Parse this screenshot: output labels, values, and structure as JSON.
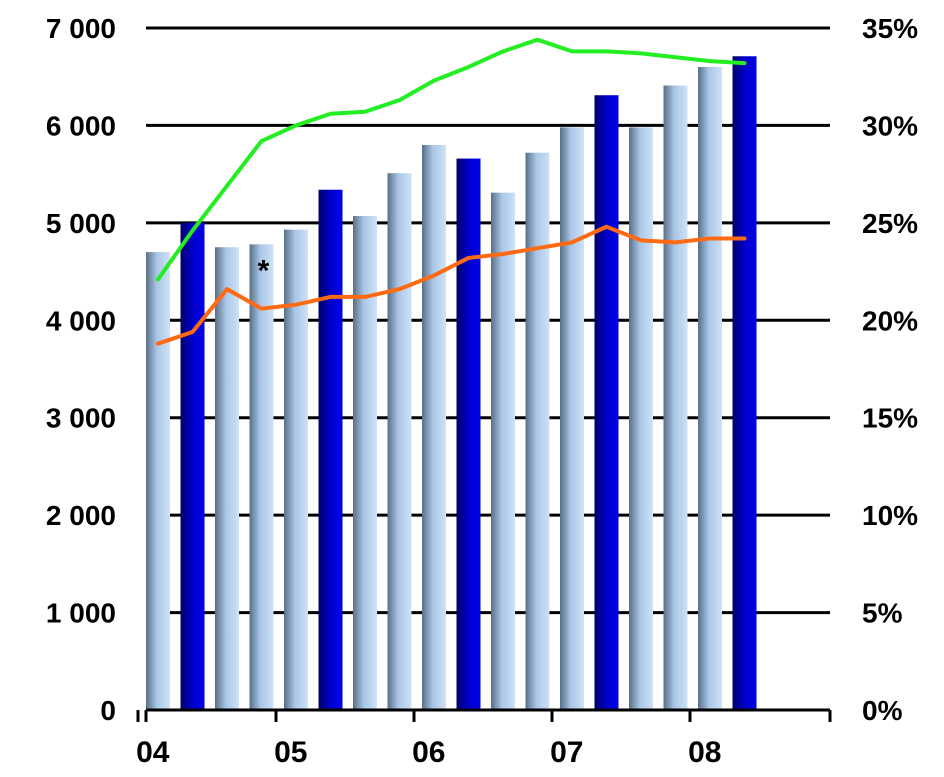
{
  "chart_data": {
    "type": "bar",
    "categories": [
      "04",
      "05",
      "06",
      "07",
      "08"
    ],
    "bars": [
      {
        "x": 2004.0,
        "value": 4700,
        "highlight": false
      },
      {
        "x": 2004.25,
        "value": 5000,
        "highlight": true
      },
      {
        "x": 2004.5,
        "value": 4750,
        "highlight": false
      },
      {
        "x": 2004.75,
        "value": 4780,
        "highlight": false
      },
      {
        "x": 2005.0,
        "value": 4930,
        "highlight": false
      },
      {
        "x": 2005.25,
        "value": 5340,
        "highlight": true
      },
      {
        "x": 2005.5,
        "value": 5070,
        "highlight": false
      },
      {
        "x": 2005.75,
        "value": 5510,
        "highlight": false
      },
      {
        "x": 2006.0,
        "value": 5800,
        "highlight": false
      },
      {
        "x": 2006.25,
        "value": 5660,
        "highlight": true
      },
      {
        "x": 2006.5,
        "value": 5310,
        "highlight": false
      },
      {
        "x": 2006.75,
        "value": 5720,
        "highlight": false
      },
      {
        "x": 2007.0,
        "value": 5980,
        "highlight": false
      },
      {
        "x": 2007.25,
        "value": 6310,
        "highlight": true
      },
      {
        "x": 2007.5,
        "value": 5980,
        "highlight": false
      },
      {
        "x": 2007.75,
        "value": 6410,
        "highlight": false
      },
      {
        "x": 2008.0,
        "value": 6600,
        "highlight": false
      },
      {
        "x": 2008.25,
        "value": 6710,
        "highlight": true
      }
    ],
    "series": [
      {
        "axis": "right",
        "color": "#ff6a13",
        "x": [
          2004.0,
          2004.25,
          2004.5,
          2004.75,
          2005.0,
          2005.25,
          2005.5,
          2005.75,
          2006.0,
          2006.25,
          2006.5,
          2006.75,
          2007.0,
          2007.25,
          2007.5,
          2007.75,
          2008.0,
          2008.25
        ],
        "values": [
          18.8,
          19.4,
          21.6,
          20.6,
          20.8,
          21.2,
          21.2,
          21.6,
          22.3,
          23.2,
          23.4,
          23.7,
          24.0,
          24.8,
          24.1,
          24.0,
          24.2,
          24.2
        ]
      },
      {
        "axis": "right",
        "color": "#22ee22",
        "x": [
          2004.0,
          2004.25,
          2004.5,
          2004.75,
          2005.0,
          2005.25,
          2005.5,
          2005.75,
          2006.0,
          2006.25,
          2006.5,
          2006.75,
          2007.0,
          2007.25,
          2007.5,
          2007.75,
          2008.0,
          2008.25
        ],
        "values": [
          22.1,
          24.6,
          26.9,
          29.2,
          30.0,
          30.6,
          30.7,
          31.3,
          32.3,
          33.0,
          33.8,
          34.4,
          33.8,
          33.8,
          33.7,
          33.5,
          33.3,
          33.2
        ]
      }
    ],
    "y_left": {
      "ylim": [
        0,
        7000
      ],
      "ticks": [
        0,
        1000,
        2000,
        3000,
        4000,
        5000,
        6000,
        7000
      ],
      "tick_labels": [
        "0",
        "1 000",
        "2 000",
        "3 000",
        "4 000",
        "5 000",
        "6 000",
        "7 000"
      ]
    },
    "y_right": {
      "ylim": [
        0,
        35
      ],
      "ticks": [
        0,
        5,
        10,
        15,
        20,
        25,
        30,
        35
      ],
      "tick_labels": [
        "0%",
        "5%",
        "10%",
        "15%",
        "20%",
        "25%",
        "30%",
        "35%"
      ]
    },
    "x_axis": {
      "tick_values": [
        2004,
        2005,
        2006,
        2007,
        2008
      ],
      "tick_labels": [
        "04",
        "05",
        "06",
        "07",
        "08"
      ]
    },
    "annotation": {
      "text": "*",
      "x": 2004.75,
      "value": 4780
    },
    "grid": true,
    "colors": {
      "bar_light": "#9fc3ea",
      "bar_dark": "#0000cc",
      "axis": "#000000"
    }
  }
}
